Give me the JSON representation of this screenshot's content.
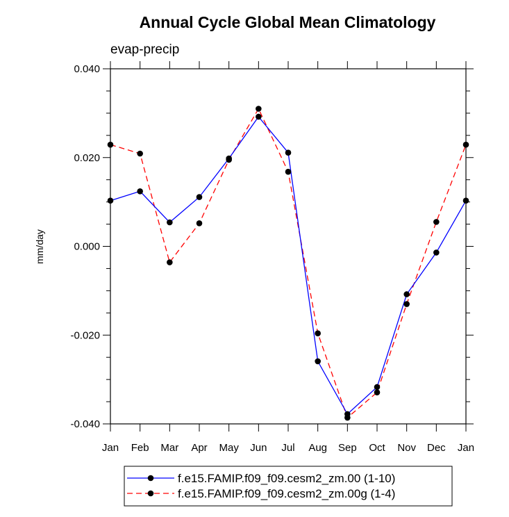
{
  "chart_data": {
    "type": "line",
    "title": "Annual Cycle Global Mean Climatology",
    "subtitle": "evap-precip",
    "xlabel": "",
    "ylabel": "mm/day",
    "categories": [
      "Jan",
      "Feb",
      "Mar",
      "Apr",
      "May",
      "Jun",
      "Jul",
      "Aug",
      "Sep",
      "Oct",
      "Nov",
      "Dec",
      "Jan"
    ],
    "ylim": [
      -0.04,
      0.04
    ],
    "yticks": [
      "0.040",
      "0.020",
      "0.000",
      "-0.020",
      "-0.040"
    ],
    "ytick_values": [
      0.04,
      0.02,
      0.0,
      -0.02,
      -0.04
    ],
    "grid": false,
    "legend_position": "bottom-center",
    "series": [
      {
        "name": "f.e15.FAMIP.f09_f09.cesm2_zm.00 (1-10)",
        "color": "#0000ff",
        "dash": "solid",
        "values": [
          0.0103,
          0.0124,
          0.0054,
          0.0111,
          0.0198,
          0.0292,
          0.0211,
          -0.0259,
          -0.0378,
          -0.0317,
          -0.0108,
          -0.0014,
          0.0103
        ]
      },
      {
        "name": "f.e15.FAMIP.f09_f09.cesm2_zm.00g (1-4)",
        "color": "#ff0000",
        "dash": "dashed",
        "values": [
          0.0229,
          0.0209,
          -0.0036,
          0.0052,
          0.0195,
          0.031,
          0.0168,
          -0.0196,
          -0.0386,
          -0.0329,
          -0.013,
          0.0055,
          0.0229
        ]
      }
    ]
  }
}
